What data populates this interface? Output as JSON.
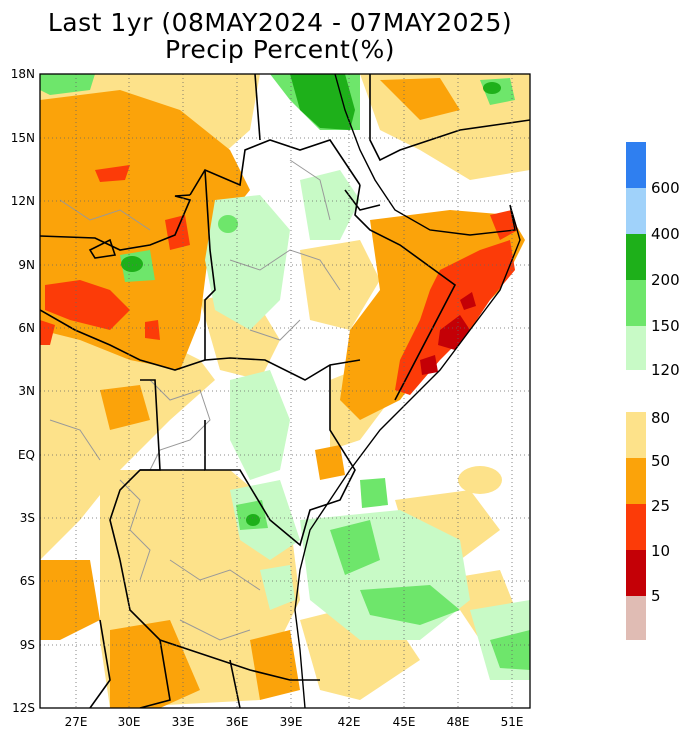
{
  "title": {
    "line1": "Last 1yr (08MAY2024 - 07MAY2025)",
    "line2": "Precip Percent(%)"
  },
  "map": {
    "lat_labels": [
      "18N",
      "15N",
      "12N",
      "9N",
      "6N",
      "3N",
      "EQ",
      "3S",
      "6S",
      "9S",
      "12S"
    ],
    "lon_labels": [
      "27E",
      "30E",
      "33E",
      "36E",
      "39E",
      "42E",
      "45E",
      "48E",
      "51E"
    ],
    "lat_range": [
      -12,
      18
    ],
    "lon_range": [
      24,
      52.5
    ],
    "colors": {
      "dry_light": "#fde28a",
      "dry_mid": "#fba30a",
      "dry_strong": "#fc3b08",
      "dry_severe": "#c40006",
      "dry_extreme": "#a30d0d",
      "wet_light": "#c8fac6",
      "wet_mid": "#6ee66b",
      "wet_strong": "#1eb01a",
      "border": "#000000",
      "admin": "#999999",
      "grid": "#666666"
    }
  },
  "colorbar": {
    "wet": [
      {
        "label": "600",
        "color": "#2f7ff0"
      },
      {
        "label": "400",
        "color": "#a0d2fa"
      },
      {
        "label": "200",
        "color": "#1eb01a"
      },
      {
        "label": "150",
        "color": "#6ee66b"
      },
      {
        "label": "120",
        "color": "#c8fac6"
      }
    ],
    "dry": [
      {
        "label": "80",
        "color": "#fde28a"
      },
      {
        "label": "50",
        "color": "#fba30a"
      },
      {
        "label": "25",
        "color": "#fc3b08"
      },
      {
        "label": "10",
        "color": "#c40006"
      },
      {
        "label": "5",
        "color": "#e0bcb4"
      }
    ]
  }
}
